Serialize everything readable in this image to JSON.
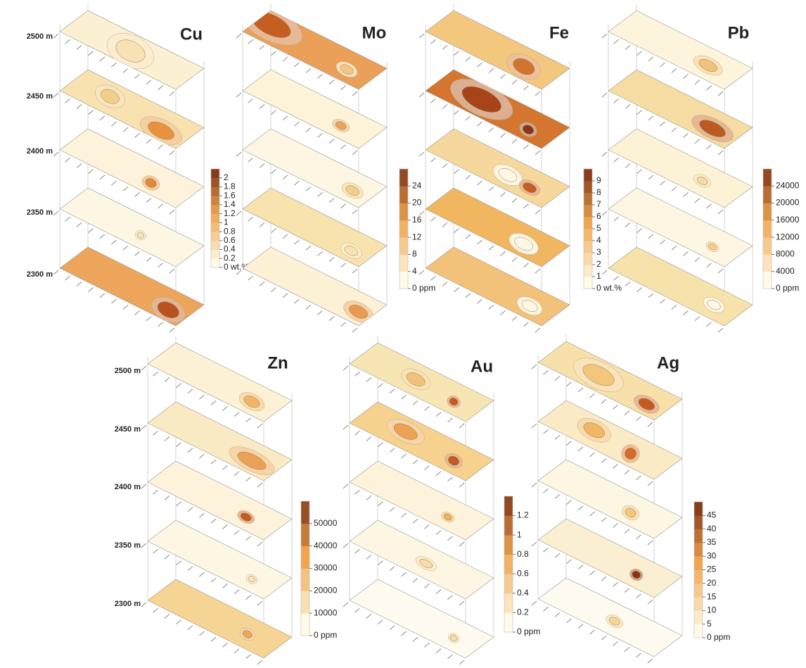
{
  "rows": [
    {
      "elevations": [
        "2500 m",
        "2450 m",
        "2400 m",
        "2350 m",
        "2300 m"
      ],
      "panels": [
        {
          "element": "Cu",
          "colorbar_labels": [
            "0 wt.%",
            "0.2",
            "0.4",
            "0.6",
            "0.8",
            "1",
            "1.2",
            "1.4",
            "1.6",
            "1.8",
            "2"
          ]
        },
        {
          "element": "Mo",
          "colorbar_labels": [
            "0 ppm",
            "4",
            "8",
            "12",
            "16",
            "20",
            "24"
          ]
        },
        {
          "element": "Fe",
          "colorbar_labels": [
            "0 wt.%",
            "1",
            "2",
            "3",
            "4",
            "5",
            "6",
            "7",
            "8",
            "9"
          ]
        },
        {
          "element": "Pb",
          "colorbar_labels": [
            "0  ppm",
            "4000",
            "8000",
            "12000",
            "16000",
            "20000",
            "24000"
          ]
        }
      ]
    },
    {
      "elevations": [
        "2500 m",
        "2450 m",
        "2400 m",
        "2350 m",
        "2300 m"
      ],
      "panels": [
        {
          "element": "Zn",
          "colorbar_labels": [
            "0 ppm",
            "10000",
            "20000",
            "30000",
            "40000",
            "50000"
          ]
        },
        {
          "element": "Au",
          "colorbar_labels": [
            "0 ppm",
            "0.2",
            "0.4",
            "0.6",
            "0.8",
            "1",
            "1.2"
          ]
        },
        {
          "element": "Ag",
          "colorbar_labels": [
            "0 ppm",
            "5",
            "10",
            "15",
            "20",
            "25",
            "30",
            "35",
            "40",
            "45"
          ]
        }
      ]
    }
  ]
}
